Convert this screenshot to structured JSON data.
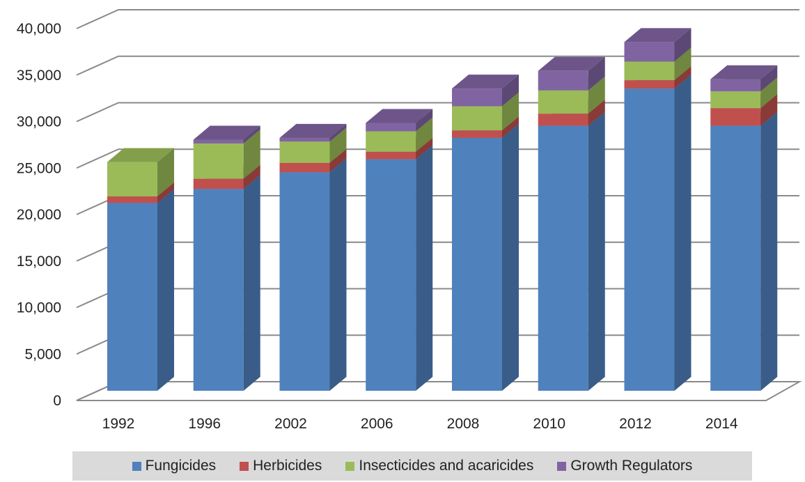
{
  "chart_data": {
    "type": "bar",
    "stacked": true,
    "three_d": true,
    "categories": [
      "1992",
      "1996",
      "2002",
      "2006",
      "2008",
      "2010",
      "2012",
      "2014"
    ],
    "series": [
      {
        "name": "Fungicides",
        "color": "#4f81bd",
        "values": [
          20200,
          21700,
          23500,
          24900,
          27200,
          28500,
          32500,
          28500
        ]
      },
      {
        "name": "Herbicides",
        "color": "#c0504d",
        "values": [
          700,
          1100,
          1000,
          800,
          800,
          1300,
          900,
          1900
        ]
      },
      {
        "name": "Insecticides and acaricides",
        "color": "#9bbb59",
        "values": [
          3700,
          3800,
          2300,
          2200,
          2600,
          2500,
          2000,
          1800
        ]
      },
      {
        "name": "Growth Regulators",
        "color": "#8064a2",
        "values": [
          0,
          400,
          400,
          900,
          1900,
          2100,
          2100,
          1300
        ]
      }
    ],
    "y_ticks": [
      "0",
      "5,000",
      "10,000",
      "15,000",
      "20,000",
      "25,000",
      "30,000",
      "35,000",
      "40,000"
    ],
    "ylim": [
      0,
      40000
    ],
    "grid": true,
    "legend_position": "bottom"
  }
}
